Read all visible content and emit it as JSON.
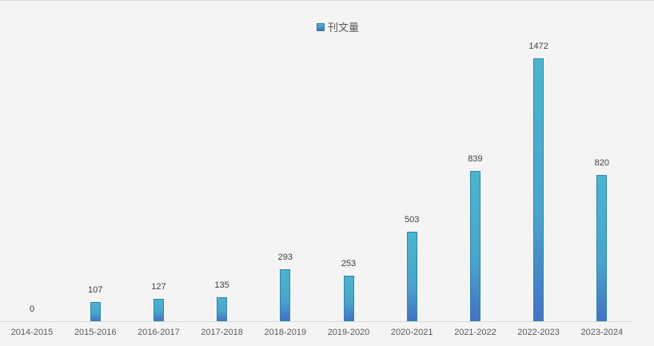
{
  "chart_data": {
    "type": "bar",
    "title": "",
    "legend": [
      "刊文量"
    ],
    "legend_position": "top",
    "categories": [
      "2014-2015",
      "2015-2016",
      "2016-2017",
      "2017-2018",
      "2018-2019",
      "2019-2020",
      "2020-2021",
      "2021-2022",
      "2022-2023",
      "2023-2024"
    ],
    "series": [
      {
        "name": "刊文量",
        "values": [
          0,
          107,
          127,
          135,
          293,
          253,
          503,
          839,
          1472,
          820
        ]
      }
    ],
    "xlabel": "",
    "ylabel": "",
    "ylim": [
      0,
      1472
    ],
    "grid": false,
    "data_labels": true
  },
  "legend": {
    "label": "刊文量"
  },
  "labels": {
    "values": [
      "0",
      "107",
      "127",
      "135",
      "293",
      "253",
      "503",
      "839",
      "1472",
      "820"
    ],
    "categories": [
      "2014-2015",
      "2015-2016",
      "2016-2017",
      "2017-2018",
      "2018-2019",
      "2019-2020",
      "2020-2021",
      "2021-2022",
      "2022-2023",
      "2023-2024"
    ]
  },
  "colors": {
    "bar_top": "#4bb5cf",
    "bar_bottom": "#4472c4",
    "bar_border": "#2e86a6",
    "background": "#f4f4f4"
  }
}
